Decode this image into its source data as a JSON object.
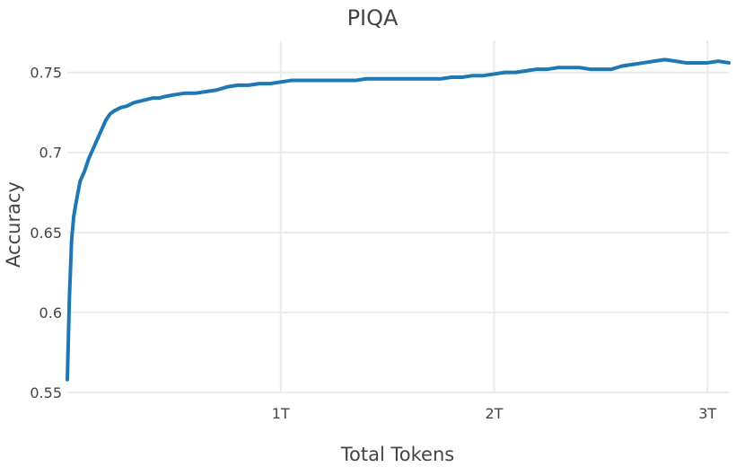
{
  "chart_data": {
    "type": "line",
    "title": "PIQA",
    "xlabel": "Total Tokens",
    "ylabel": "Accuracy",
    "xlim": [
      0,
      3.1
    ],
    "ylim": [
      0.55,
      0.77
    ],
    "x_ticks": [
      {
        "value": 1,
        "label": "1T"
      },
      {
        "value": 2,
        "label": "2T"
      },
      {
        "value": 3,
        "label": "3T"
      }
    ],
    "y_ticks": [
      {
        "value": 0.55,
        "label": "0.55"
      },
      {
        "value": 0.6,
        "label": "0.6"
      },
      {
        "value": 0.65,
        "label": "0.65"
      },
      {
        "value": 0.7,
        "label": "0.7"
      },
      {
        "value": 0.75,
        "label": "0.75"
      }
    ],
    "grid": true,
    "legend": false,
    "series": [
      {
        "color": "#1f77b4",
        "x": [
          0.0,
          0.01,
          0.02,
          0.03,
          0.04,
          0.05,
          0.06,
          0.08,
          0.1,
          0.12,
          0.14,
          0.16,
          0.18,
          0.2,
          0.22,
          0.25,
          0.28,
          0.31,
          0.34,
          0.37,
          0.4,
          0.43,
          0.46,
          0.5,
          0.55,
          0.6,
          0.65,
          0.7,
          0.75,
          0.8,
          0.85,
          0.9,
          0.95,
          1.0,
          1.05,
          1.1,
          1.15,
          1.2,
          1.25,
          1.3,
          1.35,
          1.4,
          1.45,
          1.5,
          1.55,
          1.6,
          1.65,
          1.7,
          1.75,
          1.8,
          1.85,
          1.9,
          1.95,
          2.0,
          2.05,
          2.1,
          2.15,
          2.2,
          2.25,
          2.3,
          2.35,
          2.4,
          2.45,
          2.5,
          2.55,
          2.6,
          2.65,
          2.7,
          2.75,
          2.8,
          2.85,
          2.9,
          2.95,
          3.0,
          3.05,
          3.1
        ],
        "y": [
          0.558,
          0.61,
          0.645,
          0.66,
          0.668,
          0.675,
          0.682,
          0.688,
          0.696,
          0.702,
          0.708,
          0.714,
          0.72,
          0.724,
          0.726,
          0.728,
          0.729,
          0.731,
          0.732,
          0.733,
          0.734,
          0.734,
          0.735,
          0.736,
          0.737,
          0.737,
          0.738,
          0.739,
          0.741,
          0.742,
          0.742,
          0.743,
          0.743,
          0.744,
          0.745,
          0.745,
          0.745,
          0.745,
          0.745,
          0.745,
          0.745,
          0.746,
          0.746,
          0.746,
          0.746,
          0.746,
          0.746,
          0.746,
          0.746,
          0.747,
          0.747,
          0.748,
          0.748,
          0.749,
          0.75,
          0.75,
          0.751,
          0.752,
          0.752,
          0.753,
          0.753,
          0.753,
          0.752,
          0.752,
          0.752,
          0.754,
          0.755,
          0.756,
          0.757,
          0.758,
          0.757,
          0.756,
          0.756,
          0.756,
          0.757,
          0.756
        ]
      }
    ]
  }
}
